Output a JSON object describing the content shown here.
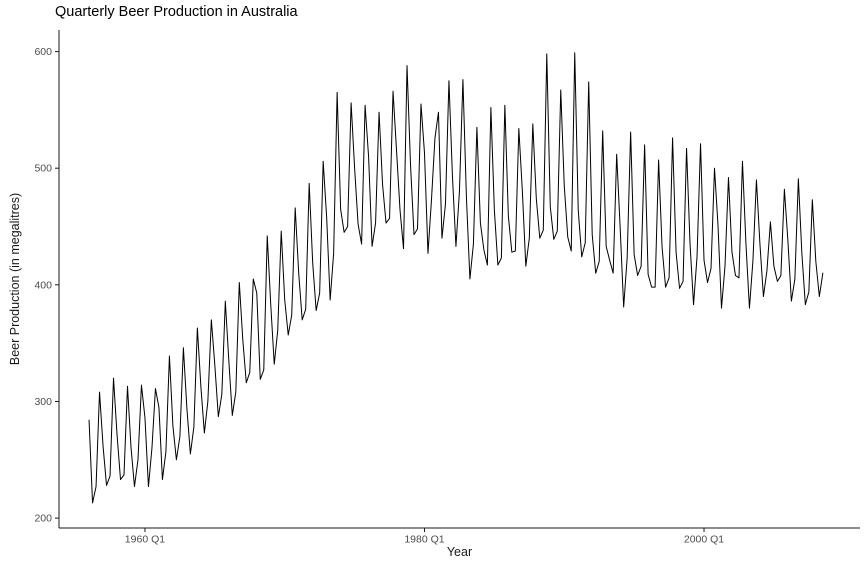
{
  "title": "Quarterly Beer Production in Australia",
  "axes": {
    "x_label": "Year",
    "y_label": "Beer Production (in megalitres)"
  },
  "colors": {
    "line": "#000000",
    "axis_line": "#1a1a1a",
    "tick_mark": "#1a1a1a",
    "tick_label": "#4d4d4d",
    "background": "#ffffff"
  },
  "chart_data": {
    "type": "line",
    "title": "Quarterly Beer Production in Australia",
    "xlabel": "Year",
    "ylabel": "Beer Production (in megalitres)",
    "grid": false,
    "legend": "none",
    "x_start": 1956.0,
    "x_step": 0.25,
    "x_start_period": "Q1",
    "frequency": 4,
    "xlim": [
      1953.85,
      2011.16
    ],
    "ylim": [
      191.5,
      618.5
    ],
    "x_ticks": [
      {
        "value": 1960.0,
        "label": "1960 Q1"
      },
      {
        "value": 1980.0,
        "label": "1980 Q1"
      },
      {
        "value": 2000.0,
        "label": "2000 Q1"
      }
    ],
    "y_ticks": [
      200,
      300,
      400,
      500,
      600
    ],
    "values": [
      284,
      213,
      227,
      308,
      262,
      228,
      236,
      320,
      272,
      233,
      237,
      313,
      261,
      227,
      250,
      314,
      286,
      227,
      260,
      311,
      295,
      233,
      257,
      339,
      279,
      250,
      270,
      346,
      294,
      255,
      278,
      363,
      313,
      273,
      300,
      370,
      331,
      287,
      306,
      386,
      335,
      288,
      308,
      402,
      353,
      316,
      325,
      405,
      393,
      319,
      327,
      442,
      383,
      332,
      361,
      446,
      387,
      357,
      374,
      466,
      410,
      370,
      379,
      487,
      419,
      378,
      393,
      506,
      458,
      387,
      427,
      565,
      465,
      445,
      450,
      556,
      500,
      452,
      435,
      554,
      510,
      433,
      453,
      548,
      486,
      453,
      457,
      566,
      515,
      464,
      431,
      588,
      503,
      443,
      448,
      555,
      513,
      427,
      473,
      526,
      548,
      440,
      469,
      575,
      493,
      433,
      480,
      576,
      475,
      405,
      435,
      535,
      453,
      430,
      417,
      552,
      464,
      417,
      423,
      554,
      459,
      428,
      429,
      534,
      481,
      416,
      440,
      538,
      474,
      440,
      447,
      598,
      467,
      439,
      446,
      567,
      485,
      441,
      429,
      599,
      464,
      424,
      436,
      574,
      443,
      410,
      420,
      532,
      433,
      421,
      410,
      512,
      449,
      381,
      423,
      531,
      426,
      408,
      416,
      520,
      409,
      398,
      398,
      507,
      432,
      398,
      406,
      526,
      428,
      397,
      403,
      517,
      435,
      383,
      424,
      521,
      421,
      402,
      414,
      500,
      451,
      380,
      416,
      492,
      428,
      408,
      406,
      506,
      435,
      380,
      421,
      490,
      435,
      390,
      412,
      454,
      416,
      403,
      408,
      482,
      438,
      386,
      405,
      491,
      427,
      383,
      394,
      473,
      420,
      390,
      410
    ]
  }
}
